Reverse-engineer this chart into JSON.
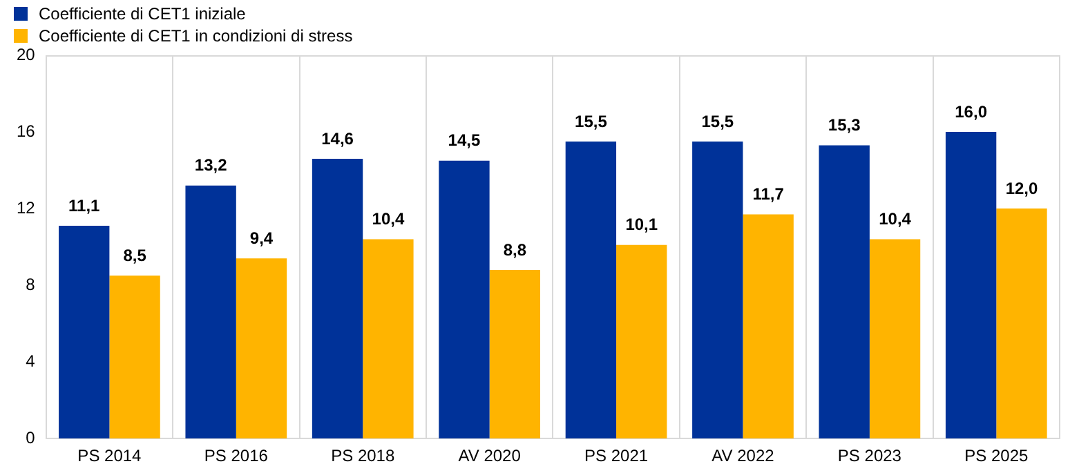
{
  "chart_data": {
    "type": "bar",
    "categories": [
      "PS 2014",
      "PS 2016",
      "PS 2018",
      "AV 2020",
      "PS 2021",
      "AV 2022",
      "PS 2023",
      "PS 2025"
    ],
    "series": [
      {
        "name": "Coefficiente di CET1 iniziale",
        "color": "#003299",
        "values": [
          11.1,
          13.2,
          14.6,
          14.5,
          15.5,
          15.5,
          15.3,
          16.0
        ],
        "value_labels": [
          "11,1",
          "13,2",
          "14,6",
          "14,5",
          "15,5",
          "15,5",
          "15,3",
          "16,0"
        ]
      },
      {
        "name": "Coefficiente di CET1 in condizioni di stress",
        "color": "#ffb400",
        "values": [
          8.5,
          9.4,
          10.4,
          8.8,
          10.1,
          11.7,
          10.4,
          12.0
        ],
        "value_labels": [
          "8,5",
          "9,4",
          "10,4",
          "8,8",
          "10,1",
          "11,7",
          "10,4",
          "12,0"
        ]
      }
    ],
    "ylim": [
      0,
      20
    ],
    "yticks": [
      0,
      4,
      8,
      12,
      16,
      20
    ],
    "grid": "x",
    "legend": "top left"
  }
}
